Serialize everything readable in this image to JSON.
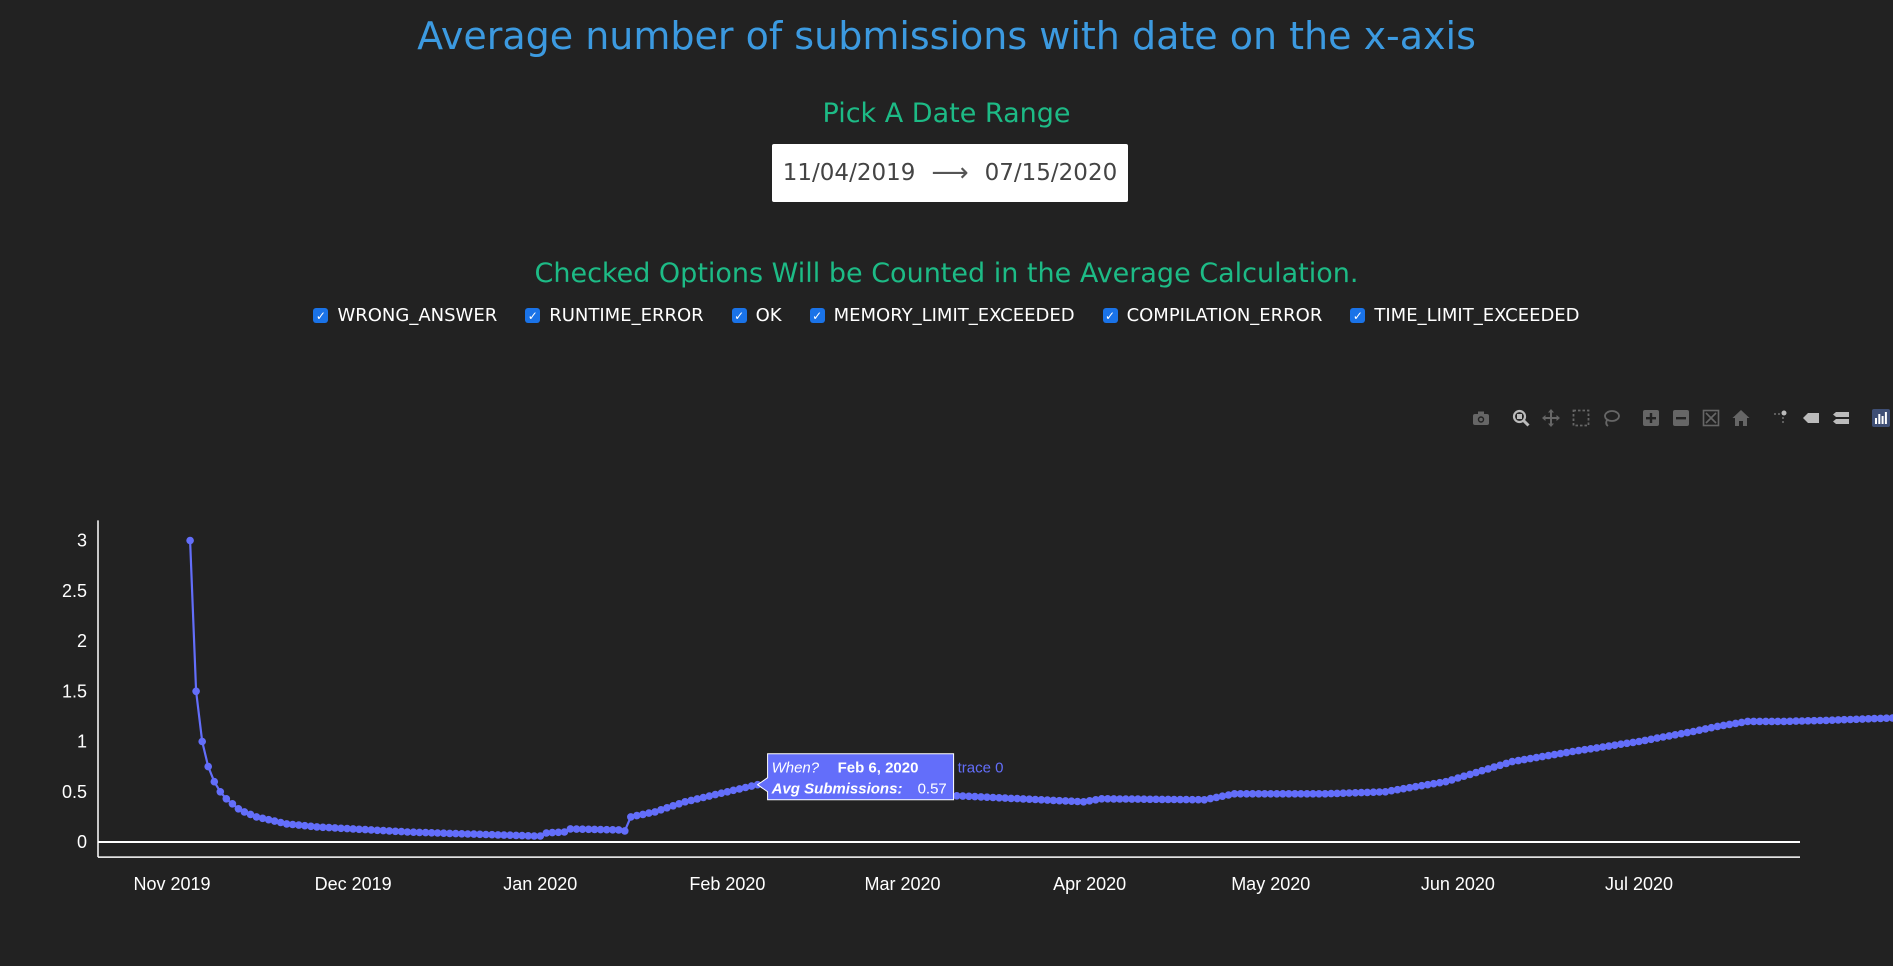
{
  "header": {
    "title": "Average number of submissions with date on the x-axis"
  },
  "date_range": {
    "title": "Pick A Date Range",
    "start": "11/04/2019",
    "end": "07/15/2020"
  },
  "options": {
    "title": "Checked Options Will be Counted in the Average Calculation.",
    "items": [
      {
        "label": "WRONG_ANSWER",
        "checked": true
      },
      {
        "label": "RUNTIME_ERROR",
        "checked": true
      },
      {
        "label": "OK",
        "checked": true
      },
      {
        "label": "MEMORY_LIMIT_EXCEEDED",
        "checked": true
      },
      {
        "label": "COMPILATION_ERROR",
        "checked": true
      },
      {
        "label": "TIME_LIMIT_EXCEEDED",
        "checked": true
      }
    ]
  },
  "modebar": [
    "camera-icon",
    "zoom-icon",
    "pan-icon",
    "box-select-icon",
    "lasso-icon",
    "zoom-in-icon",
    "zoom-out-icon",
    "autoscale-icon",
    "home-icon",
    "spike-lines-icon",
    "hover-closest-icon",
    "hover-compare-icon",
    "plotly-logo-icon"
  ],
  "colors": {
    "background": "#222222",
    "title": "#3c9ae0",
    "subtitle": "#1dbb86",
    "line": "#636efa",
    "checkbox": "#1a73e8"
  },
  "chart_data": {
    "type": "line",
    "series": [
      {
        "name": "trace 0",
        "color": "#636efa",
        "anchors": [
          [
            "2019-11-04",
            3.0
          ],
          [
            "2019-11-05",
            1.5
          ],
          [
            "2019-11-06",
            1.0
          ],
          [
            "2019-11-07",
            0.75
          ],
          [
            "2019-11-08",
            0.6
          ],
          [
            "2019-11-09",
            0.5
          ],
          [
            "2019-11-10",
            0.43
          ],
          [
            "2019-11-11",
            0.38
          ],
          [
            "2019-11-12",
            0.33
          ],
          [
            "2019-11-13",
            0.3
          ],
          [
            "2019-11-15",
            0.25
          ],
          [
            "2019-11-20",
            0.18
          ],
          [
            "2019-11-25",
            0.15
          ],
          [
            "2019-12-01",
            0.13
          ],
          [
            "2019-12-10",
            0.1
          ],
          [
            "2019-12-20",
            0.08
          ],
          [
            "2019-12-31",
            0.06
          ],
          [
            "2020-01-01",
            0.06
          ],
          [
            "2020-01-02",
            0.09
          ],
          [
            "2020-01-05",
            0.1
          ],
          [
            "2020-01-06",
            0.13
          ],
          [
            "2020-01-14",
            0.12
          ],
          [
            "2020-01-15",
            0.11
          ],
          [
            "2020-01-16",
            0.25
          ],
          [
            "2020-01-20",
            0.3
          ],
          [
            "2020-01-25",
            0.4
          ],
          [
            "2020-02-01",
            0.5
          ],
          [
            "2020-02-06",
            0.57
          ],
          [
            "2020-02-20",
            0.52
          ],
          [
            "2020-03-10",
            0.46
          ],
          [
            "2020-03-31",
            0.4
          ],
          [
            "2020-04-03",
            0.43
          ],
          [
            "2020-04-20",
            0.42
          ],
          [
            "2020-04-25",
            0.48
          ],
          [
            "2020-05-10",
            0.48
          ],
          [
            "2020-05-20",
            0.5
          ],
          [
            "2020-05-30",
            0.6
          ],
          [
            "2020-06-10",
            0.8
          ],
          [
            "2020-06-20",
            0.9
          ],
          [
            "2020-07-01",
            1.0
          ],
          [
            "2020-07-10",
            1.1
          ],
          [
            "2020-07-14",
            1.15
          ],
          [
            "2020-07-19",
            1.2
          ],
          [
            "2020-07-25",
            1.2
          ],
          [
            "2020-08-01",
            1.21
          ],
          [
            "2020-08-10",
            1.23
          ],
          [
            "2020-08-15",
            1.24
          ]
        ]
      }
    ],
    "xaxis": {
      "ticks": [
        {
          "date": "2019-11-01",
          "label": "Nov 2019"
        },
        {
          "date": "2019-12-01",
          "label": "Dec 2019"
        },
        {
          "date": "2020-01-01",
          "label": "Jan 2020"
        },
        {
          "date": "2020-02-01",
          "label": "Feb 2020"
        },
        {
          "date": "2020-03-01",
          "label": "Mar 2020"
        },
        {
          "date": "2020-04-01",
          "label": "Apr 2020"
        },
        {
          "date": "2020-05-01",
          "label": "May 2020"
        },
        {
          "date": "2020-06-01",
          "label": "Jun 2020"
        },
        {
          "date": "2020-07-01",
          "label": "Jul 2020"
        }
      ]
    },
    "yaxis": {
      "range": [
        -0.15,
        3.2
      ],
      "ticks": [
        0,
        0.5,
        1,
        1.5,
        2,
        2.5,
        3
      ],
      "tick_labels": [
        "0",
        "0.5",
        "1",
        "1.5",
        "2",
        "2.5",
        "3"
      ]
    },
    "hover": {
      "date": "2020-02-06",
      "when_label": "When?",
      "when_value": "Feb 6, 2020",
      "value_label": "Avg Submissions:",
      "value": "0.57",
      "trace_label": "trace 0"
    }
  }
}
